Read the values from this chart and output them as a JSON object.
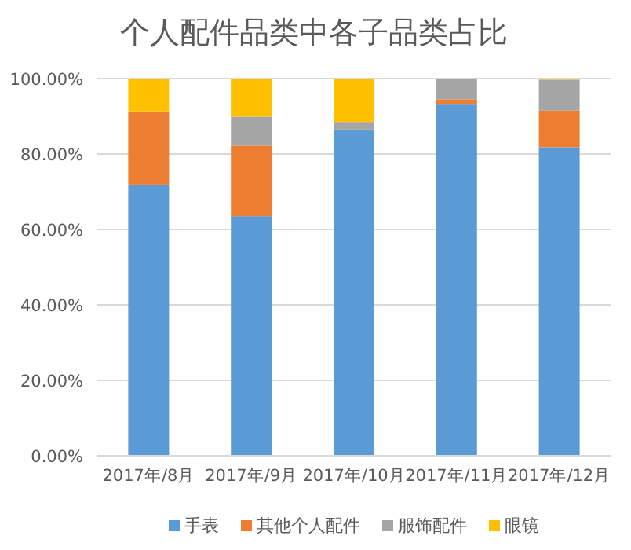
{
  "chart_data": {
    "type": "bar",
    "stacked": true,
    "title": "个人配件品类中各子品类占比",
    "categories": [
      "2017年/8月",
      "2017年/9月",
      "2017年/10月",
      "2017年/11月",
      "2017年/12月"
    ],
    "series": [
      {
        "name": "手表",
        "color": "#5b9bd5",
        "values": [
          71.9,
          63.5,
          86.3,
          93.3,
          81.8
        ]
      },
      {
        "name": "其他个人配件",
        "color": "#ed7d31",
        "values": [
          19.4,
          18.7,
          0.2,
          1.2,
          9.7
        ]
      },
      {
        "name": "服饰配件",
        "color": "#a5a5a5",
        "values": [
          null,
          7.7,
          2,
          5.5,
          8.2
        ]
      },
      {
        "name": "眼镜",
        "color": "#ffc000",
        "values": [
          8.7,
          10.1,
          11.5,
          0,
          0.3
        ]
      }
    ],
    "ylim": [
      0,
      100
    ],
    "yticks": [
      {
        "value": 0,
        "label": "0.00%"
      },
      {
        "value": 20,
        "label": "20.00%"
      },
      {
        "value": 40,
        "label": "40.00%"
      },
      {
        "value": 60,
        "label": "60.00%"
      },
      {
        "value": 80,
        "label": "80.00%"
      },
      {
        "value": 100,
        "label": "100.00%"
      }
    ],
    "grid": "y",
    "legend": "bottom"
  }
}
